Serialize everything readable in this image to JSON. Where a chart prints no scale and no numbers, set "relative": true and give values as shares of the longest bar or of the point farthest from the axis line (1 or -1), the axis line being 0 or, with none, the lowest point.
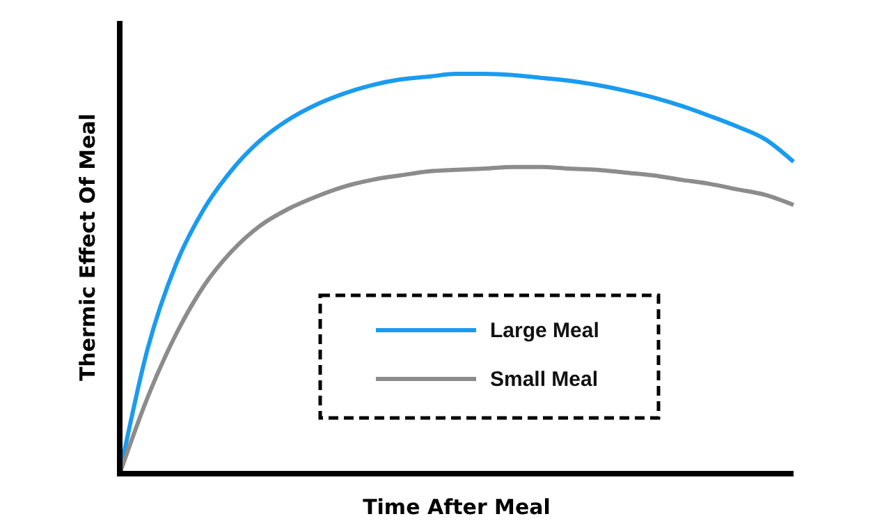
{
  "chart_data": {
    "type": "line",
    "relative": true,
    "xlabel": "Time After Meal",
    "ylabel": "Thermic Effect Of Meal",
    "legend": "bottom",
    "marker": "none",
    "line_style": "solid",
    "categories": [
      null,
      null,
      null,
      null,
      null,
      null,
      null,
      null,
      null,
      null,
      null,
      null,
      null,
      null,
      null,
      null,
      null,
      null,
      null,
      null,
      null,
      null,
      null,
      null,
      null
    ],
    "series": [
      {
        "name": "Large Meal",
        "color": "#1a9bef",
        "values": [
          0,
          0.314,
          0.523,
          0.662,
          0.76,
          0.833,
          0.885,
          0.923,
          0.951,
          0.972,
          0.986,
          0.993,
          1,
          1,
          0.997,
          0.99,
          0.983,
          0.972,
          0.958,
          0.941,
          0.92,
          0.895,
          0.868,
          0.836,
          0.78
        ]
      },
      {
        "name": "Small Meal",
        "color": "#8c8c8c",
        "values": [
          0,
          0.192,
          0.348,
          0.47,
          0.557,
          0.62,
          0.662,
          0.693,
          0.718,
          0.735,
          0.746,
          0.756,
          0.76,
          0.763,
          0.767,
          0.767,
          0.763,
          0.76,
          0.753,
          0.746,
          0.735,
          0.725,
          0.711,
          0.697,
          0.672
        ]
      }
    ]
  }
}
